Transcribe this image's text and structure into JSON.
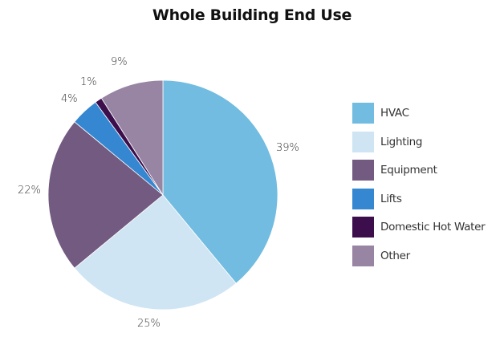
{
  "chart_data": {
    "type": "pie",
    "title": "Whole Building End Use",
    "categories": [
      "HVAC",
      "Lighting",
      "Equipment",
      "Lifts",
      "Domestic Hot Water",
      "Other"
    ],
    "values": [
      39,
      25,
      22,
      4,
      1,
      9
    ],
    "value_labels": [
      "39%",
      "25%",
      "22%",
      "4%",
      "1%",
      "9%"
    ],
    "colors": [
      "#71bce0",
      "#cfe5f3",
      "#725a80",
      "#3487d0",
      "#3d0e4c",
      "#9785a3"
    ],
    "start_angle": "12 o'clock",
    "direction": "clockwise",
    "legend_position": "right"
  },
  "title": "Whole Building End Use",
  "labels": {
    "hvac": "39%",
    "lighting": "25%",
    "equipment": "22%",
    "lifts": "4%",
    "dhw": "1%",
    "other": "9%"
  },
  "legend": [
    {
      "label": "HVAC",
      "color": "#71bce0"
    },
    {
      "label": "Lighting",
      "color": "#cfe5f3"
    },
    {
      "label": "Equipment",
      "color": "#725a80"
    },
    {
      "label": "Lifts",
      "color": "#3487d0"
    },
    {
      "label": "Domestic Hot Water",
      "color": "#3d0e4c"
    },
    {
      "label": "Other",
      "color": "#9785a3"
    }
  ]
}
